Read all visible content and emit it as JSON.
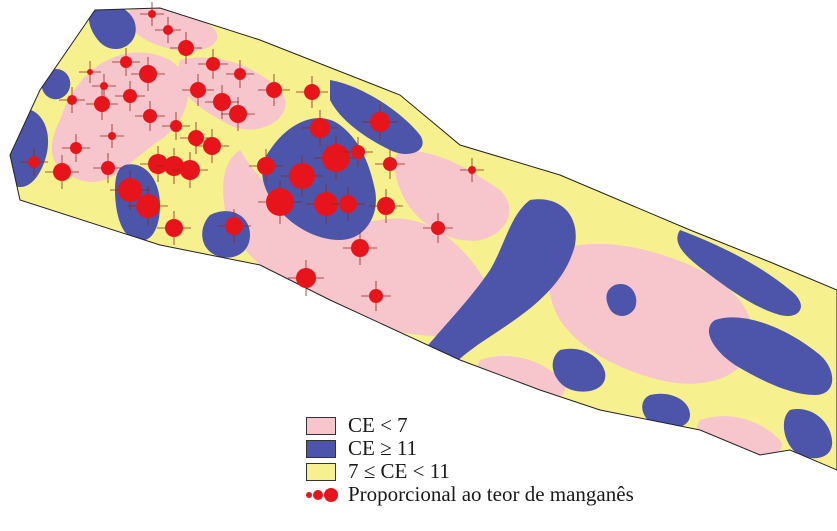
{
  "colors": {
    "low": "#f7c5cc",
    "high": "#4c55a9",
    "mid": "#f6f08e",
    "point": "#e8141c",
    "outline": "#222222"
  },
  "legend": {
    "items": [
      {
        "key": "low",
        "label": "CE < 7"
      },
      {
        "key": "high",
        "label": "CE ≥ 11"
      },
      {
        "key": "mid",
        "label": "7 ≤ CE < 11"
      }
    ],
    "points_label": "Proporcional ao teor de manganês"
  }
}
